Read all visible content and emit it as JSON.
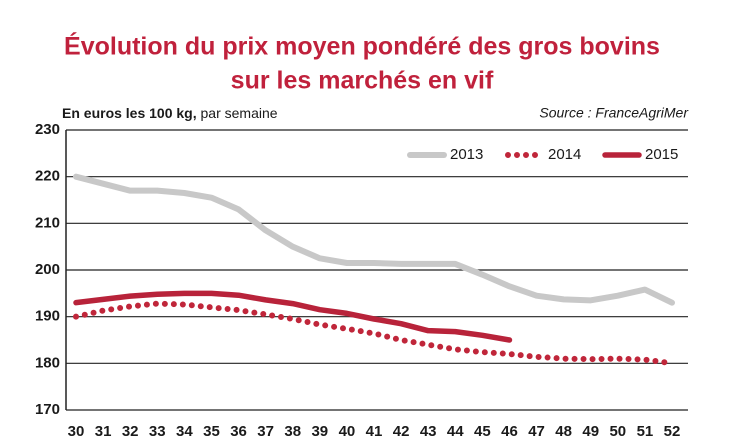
{
  "chart_data": {
    "type": "line",
    "title": [
      "Évolution du prix moyen pondéré des gros bovins",
      "sur les marchés en vif"
    ],
    "y_label": "En euros les 100 kg,",
    "y_label_note": "par semaine",
    "source": "Source : FranceAgriMer",
    "categories": [
      "30",
      "31",
      "32",
      "33",
      "34",
      "35",
      "36",
      "37",
      "38",
      "39",
      "40",
      "41",
      "42",
      "43",
      "44",
      "45",
      "46",
      "47",
      "48",
      "49",
      "50",
      "51",
      "52"
    ],
    "series": [
      {
        "name": "2013",
        "color": "#c8c8c8",
        "style": "solid",
        "values": [
          220,
          218.5,
          217,
          217,
          216.5,
          215.5,
          213,
          208.5,
          205,
          202.5,
          201.5,
          201.5,
          201.3,
          201.3,
          201.3,
          199,
          196.5,
          194.5,
          193.7,
          193.5,
          194.5,
          195.8,
          193
        ]
      },
      {
        "name": "2014",
        "color": "#c0263a",
        "style": "dotted",
        "values": [
          190,
          191.3,
          192.2,
          192.8,
          192.6,
          192,
          191.4,
          190.5,
          189.5,
          188.3,
          187.4,
          186.4,
          185,
          184,
          183,
          182.4,
          182,
          181.4,
          181,
          180.9,
          181,
          180.8,
          180
        ]
      },
      {
        "name": "2015",
        "color": "#b8233a",
        "style": "solid",
        "values": [
          193,
          193.7,
          194.4,
          194.8,
          195,
          195,
          194.6,
          193.6,
          192.8,
          191.5,
          190.7,
          189.5,
          188.5,
          187,
          186.8,
          186,
          185,
          null,
          null,
          null,
          null,
          null,
          null
        ]
      }
    ],
    "ylim": [
      170,
      230
    ],
    "yticks": [
      170,
      180,
      190,
      200,
      210,
      220,
      230
    ],
    "grid": true
  }
}
